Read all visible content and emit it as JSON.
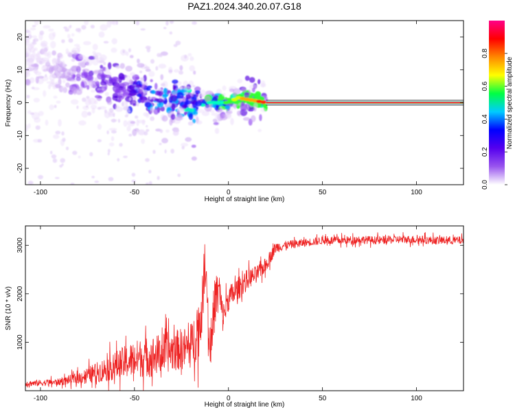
{
  "title": "PAZ1.2024.340.20.07.G18",
  "chart_data": [
    {
      "type": "heatmap",
      "xlabel": "Height of straight line (km)",
      "ylabel": "Frequency (Hz)",
      "xlim": [
        -108,
        125
      ],
      "ylim": [
        -25,
        25
      ],
      "xticks": [
        -100,
        -50,
        0,
        50,
        100
      ],
      "yticks": [
        -20,
        -10,
        0,
        10,
        20
      ],
      "colorbar": {
        "label": "Normalized spectral amplitude",
        "range": [
          0,
          1
        ],
        "ticks": [
          "0.0",
          "0.2",
          "0.4",
          "0.6",
          "0.8"
        ],
        "colors": [
          "#ffffff",
          "#9955ee",
          "#5500ee",
          "#0000ff",
          "#00ccff",
          "#00ff44",
          "#ffff00",
          "#ff8800",
          "#ff0000",
          "#ff0088"
        ]
      },
      "ridge": {
        "x": [
          -100,
          -90,
          -80,
          -70,
          -60,
          -50,
          -40,
          -30,
          -20,
          -10,
          0,
          5,
          10,
          20,
          50,
          100,
          125
        ],
        "freq": [
          11,
          9,
          9,
          7,
          5,
          3,
          2,
          1,
          0,
          0,
          0,
          1.5,
          1,
          0,
          0,
          0,
          0
        ],
        "amplitude": [
          0.05,
          0.08,
          0.12,
          0.18,
          0.2,
          0.25,
          0.28,
          0.32,
          0.35,
          0.45,
          0.55,
          0.7,
          0.8,
          0.9,
          1.0,
          1.0,
          1.0
        ]
      }
    },
    {
      "type": "line",
      "xlabel": "Height of straight line (km)",
      "ylabel": "SNR (10 * v/v)",
      "xlim": [
        -108,
        125
      ],
      "ylim": [
        0,
        3400
      ],
      "xticks": [
        -100,
        -50,
        0,
        50,
        100
      ],
      "yticks": [
        1000,
        2000,
        3000
      ],
      "color": "#ee2222",
      "x": [
        -108,
        -100,
        -90,
        -80,
        -70,
        -60,
        -50,
        -40,
        -30,
        -20,
        -15,
        -12,
        -10,
        -7,
        -5,
        -3,
        0,
        5,
        10,
        15,
        20,
        25,
        30,
        40,
        50,
        60,
        70,
        80,
        90,
        100,
        110,
        120,
        125
      ],
      "y": [
        150,
        160,
        180,
        260,
        380,
        520,
        650,
        720,
        820,
        900,
        1400,
        2600,
        800,
        1900,
        2100,
        1500,
        1900,
        2100,
        2300,
        2400,
        2600,
        2950,
        3000,
        3050,
        3100,
        3100,
        3120,
        3100,
        3120,
        3120,
        3100,
        3100,
        3100
      ],
      "spread": [
        100,
        110,
        120,
        200,
        350,
        500,
        650,
        700,
        700,
        750,
        1100,
        500,
        900,
        900,
        700,
        500,
        450,
        400,
        350,
        300,
        250,
        200,
        150,
        140,
        140,
        140,
        140,
        140,
        140,
        140,
        140,
        140,
        140
      ]
    }
  ]
}
